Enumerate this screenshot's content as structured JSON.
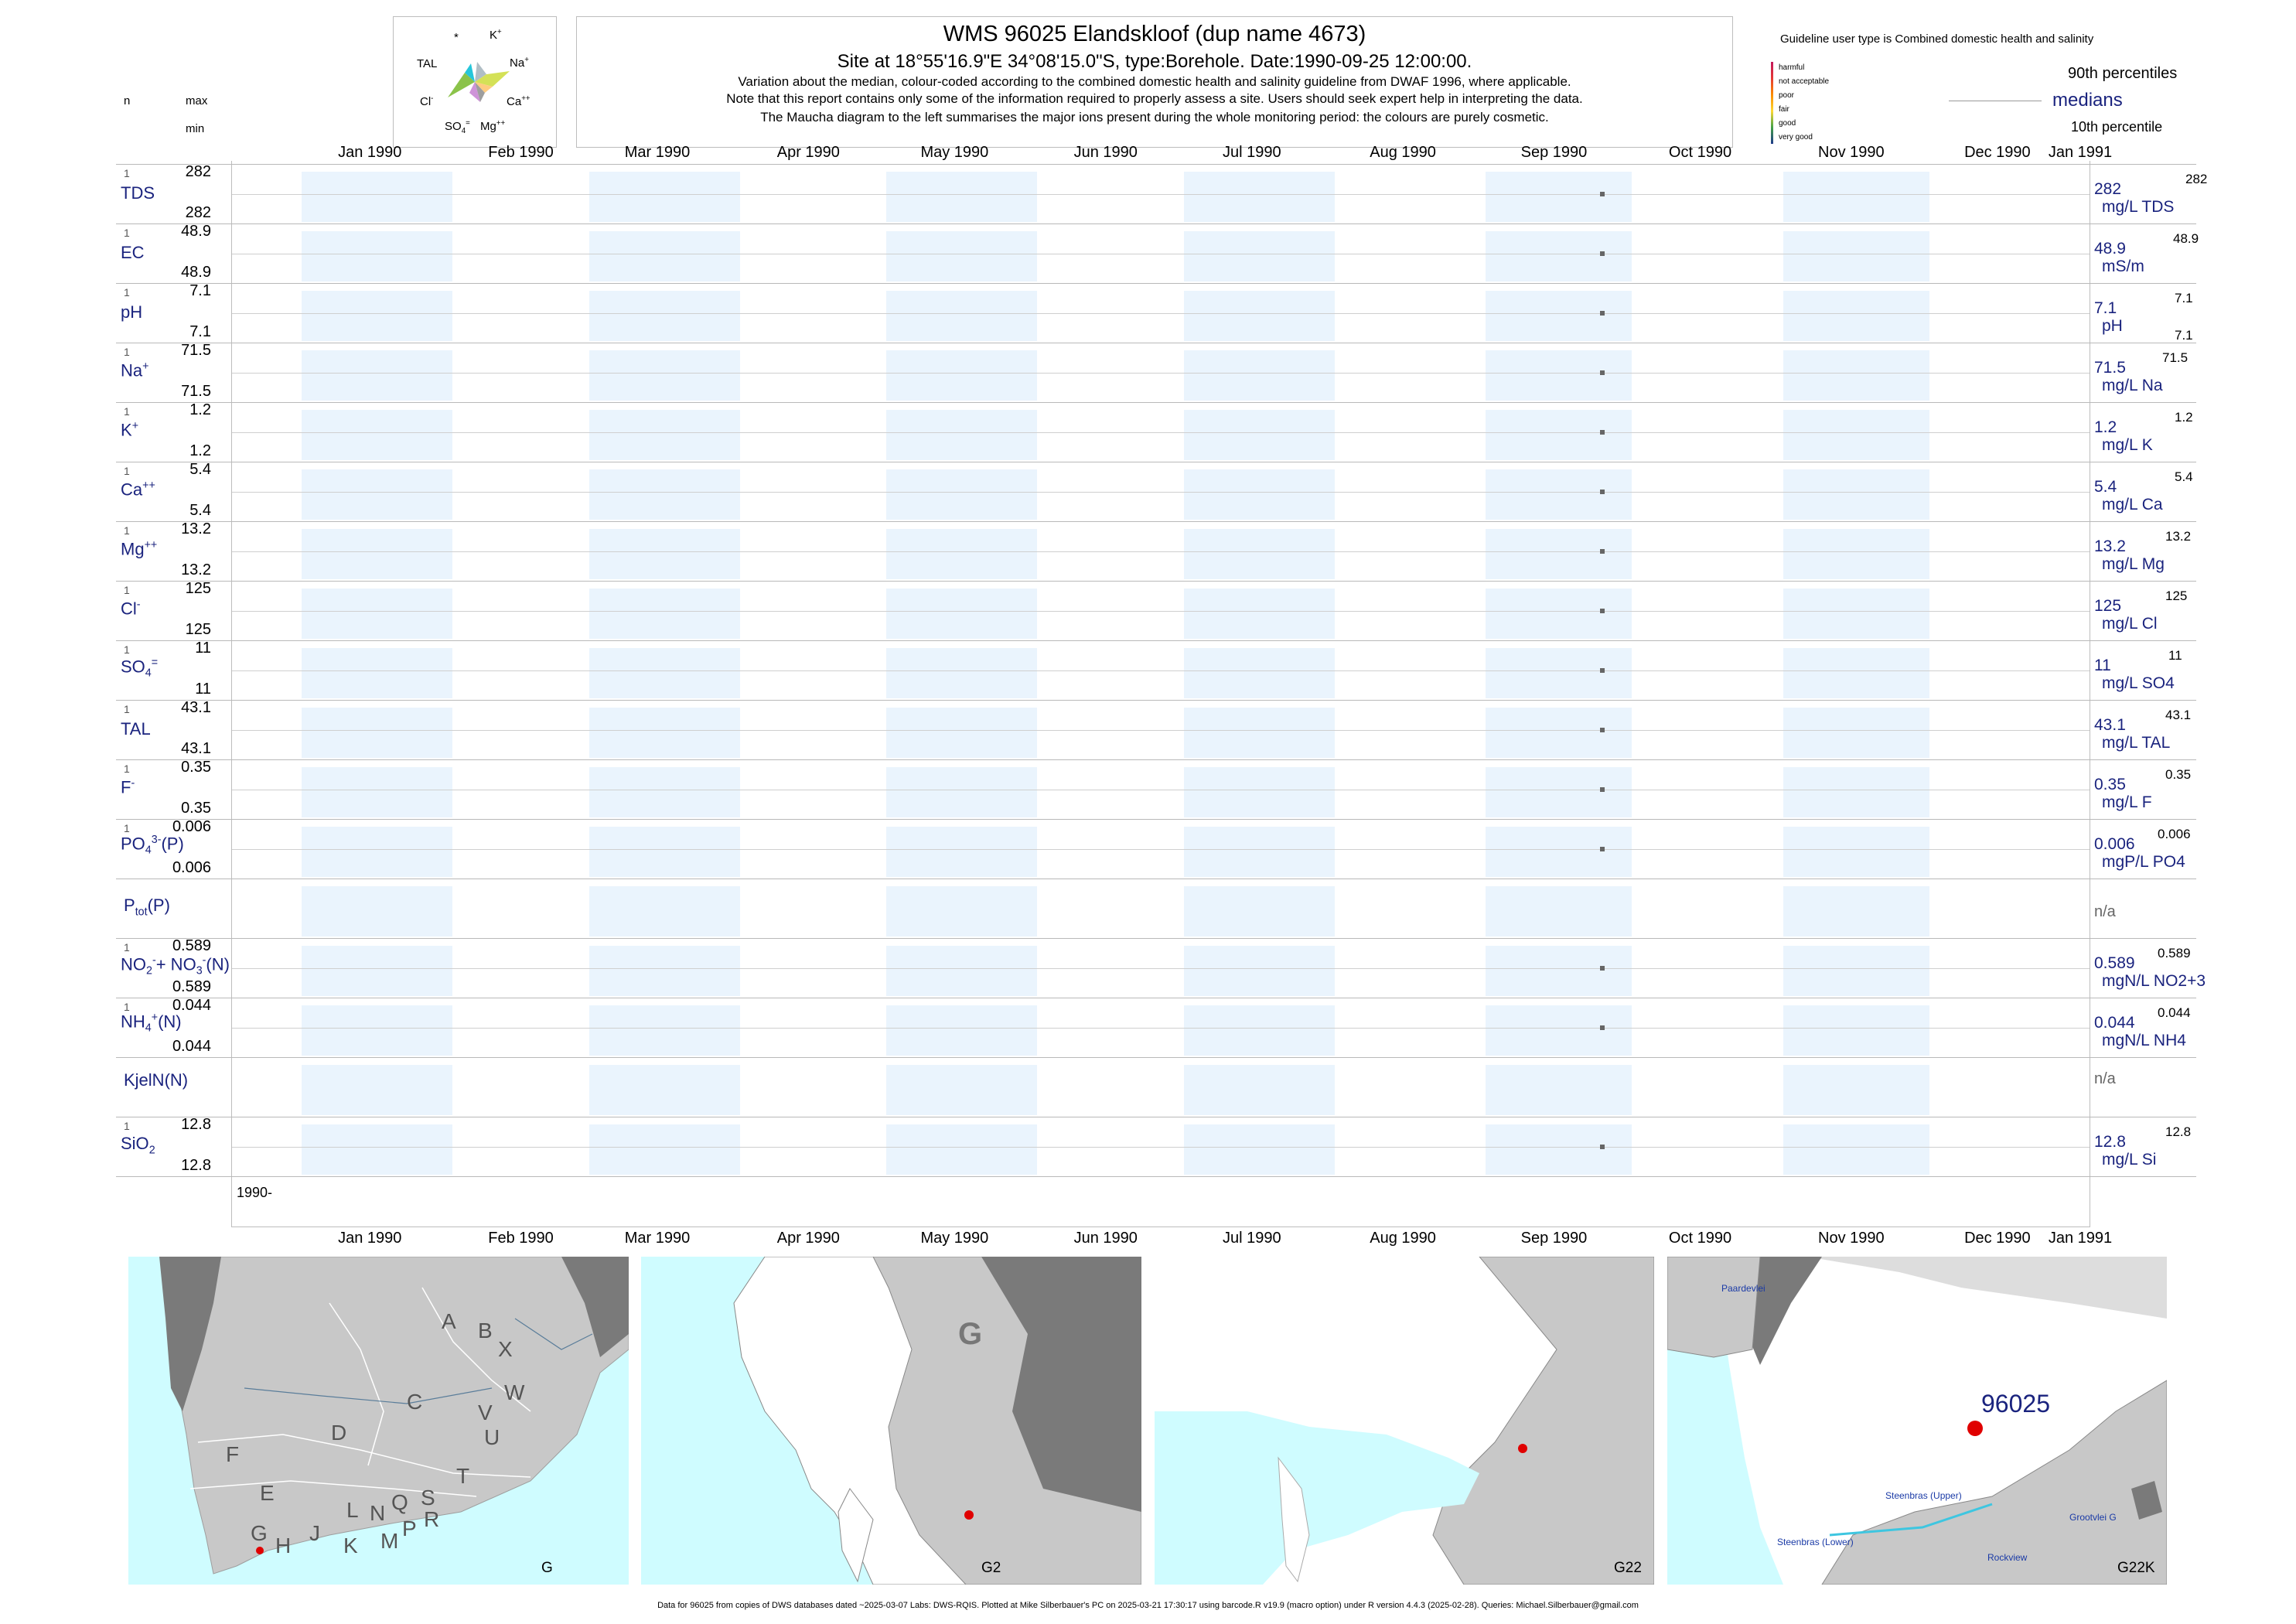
{
  "header": {
    "title": "WMS 96025  Elandskloof (dup name 4673)",
    "subtitle": "Site at 18°55'16.9\"E 34°08'15.0\"S, type:Borehole. Date:1990-09-25 12:00:00.",
    "note1": "Variation about the median,  colour-coded according to the combined domestic health and salinity guideline from DWAF 1996, where applicable.",
    "note2": "Note that this report contains only some of the information required to properly assess a site. Users should seek expert help in interpreting the data.",
    "note3": "The Maucha diagram to the left summarises the major ions present during the whole monitoring period: the colours are purely cosmetic."
  },
  "left_header": {
    "n": "n",
    "max": "max",
    "min": "min"
  },
  "maucha": {
    "star": "*",
    "k": "K",
    "tal": "TAL",
    "na": "Na",
    "cl": "Cl",
    "ca": "Ca",
    "so4": "SO",
    "mg": "Mg"
  },
  "legend": {
    "guideline": "Guideline user type is Combined domestic health and salinity",
    "classes": [
      "harmful",
      "not acceptable",
      "poor",
      "fair",
      "good",
      "very good"
    ],
    "class_colors": [
      "#c2185b",
      "#e53935",
      "#fb8c00",
      "#fdd835",
      "#43a047",
      "#1e3a8a"
    ],
    "p90": "90th percentiles",
    "medians": "medians",
    "p10": "10th percentile"
  },
  "chart_data": {
    "type": "scatter",
    "x_range": [
      "1990-01-01",
      "1991-01-01"
    ],
    "sample_date": "1990-09-25",
    "months_top": [
      "Jan 1990",
      "Feb 1990",
      "Mar 1990",
      "Apr 1990",
      "May 1990",
      "Jun 1990",
      "Jul 1990",
      "Aug 1990",
      "Sep 1990",
      "Oct 1990",
      "Nov 1990",
      "Dec 1990",
      "Jan 1991"
    ],
    "months_bottom": [
      "Jan 1990",
      "Feb 1990",
      "Mar 1990",
      "Apr 1990",
      "May 1990",
      "Jun 1990",
      "Jul 1990",
      "Aug 1990",
      "Sep 1990",
      "Oct 1990",
      "Nov 1990",
      "Dec 1990",
      "Jan 1991"
    ],
    "year_label": "1990-",
    "variables": [
      {
        "id": "tds",
        "n": "1",
        "max": "282",
        "min": "282",
        "median": "282",
        "unit": "mg/L TDS",
        "p90": "282",
        "value": 282
      },
      {
        "id": "ec",
        "n": "1",
        "max": "48.9",
        "min": "48.9",
        "median": "48.9",
        "unit": "mS/m",
        "p90": "48.9",
        "value": 48.9
      },
      {
        "id": "ph",
        "n": "1",
        "max": "7.1",
        "min": "7.1",
        "median": "7.1",
        "unit": "pH",
        "p90": "7.1",
        "p10": "7.1",
        "value": 7.1
      },
      {
        "id": "na",
        "n": "1",
        "max": "71.5",
        "min": "71.5",
        "median": "71.5",
        "unit": "mg/L Na",
        "p90": "71.5",
        "value": 71.5
      },
      {
        "id": "k",
        "n": "1",
        "max": "1.2",
        "min": "1.2",
        "median": "1.2",
        "unit": "mg/L K",
        "p90": "1.2",
        "value": 1.2
      },
      {
        "id": "ca",
        "n": "1",
        "max": "5.4",
        "min": "5.4",
        "median": "5.4",
        "unit": "mg/L Ca",
        "p90": "5.4",
        "value": 5.4
      },
      {
        "id": "mg",
        "n": "1",
        "max": "13.2",
        "min": "13.2",
        "median": "13.2",
        "unit": "mg/L Mg",
        "p90": "13.2",
        "value": 13.2
      },
      {
        "id": "cl",
        "n": "1",
        "max": "125",
        "min": "125",
        "median": "125",
        "unit": "mg/L Cl",
        "p90": "125",
        "value": 125
      },
      {
        "id": "so4",
        "n": "1",
        "max": "11",
        "min": "11",
        "median": "11",
        "unit": "mg/L SO4",
        "p90": "11",
        "value": 11
      },
      {
        "id": "tal",
        "n": "1",
        "max": "43.1",
        "min": "43.1",
        "median": "43.1",
        "unit": "mg/L TAL",
        "p90": "43.1",
        "value": 43.1
      },
      {
        "id": "f",
        "n": "1",
        "max": "0.35",
        "min": "0.35",
        "median": "0.35",
        "unit": "mg/L F",
        "p90": "0.35",
        "value": 0.35
      },
      {
        "id": "po4",
        "n": "1",
        "max": "0.006",
        "min": "0.006",
        "median": "0.006",
        "unit": "mgP/L PO4",
        "p90": "0.006",
        "value": 0.006
      },
      {
        "id": "ptot",
        "na": "n/a"
      },
      {
        "id": "no3",
        "n": "1",
        "max": "0.589",
        "min": "0.589",
        "median": "0.589",
        "unit": "mgN/L NO2+3",
        "p90": "0.589",
        "value": 0.589
      },
      {
        "id": "nh4",
        "n": "1",
        "max": "0.044",
        "min": "0.044",
        "median": "0.044",
        "unit": "mgN/L NH4",
        "p90": "0.044",
        "value": 0.044
      },
      {
        "id": "kjel",
        "na": "n/a"
      },
      {
        "id": "sio2",
        "n": "1",
        "max": "12.8",
        "min": "12.8",
        "median": "12.8",
        "unit": "mg/L Si",
        "p90": "12.8",
        "value": 12.8
      }
    ]
  },
  "maps": {
    "m1": {
      "label": "G",
      "regions": [
        "A",
        "B",
        "X",
        "W",
        "C",
        "V",
        "U",
        "D",
        "T",
        "F",
        "E",
        "L",
        "N",
        "Q",
        "S",
        "R",
        "G",
        "H",
        "J",
        "K",
        "M",
        "P"
      ]
    },
    "m2": {
      "label": "G2",
      "region": "G"
    },
    "m3": {
      "label": "G22"
    },
    "m4": {
      "label": "G22K",
      "site": "96025",
      "places": [
        "Paardevlei",
        "Steenbras (Upper)",
        "Steenbras (Lower)",
        "Grootvlei G",
        "Rockview"
      ]
    }
  },
  "footer": "Data for 96025 from copies of DWS databases dated ~2025-03-07 Labs: DWS-RQIS. Plotted at Mike Silberbauer's PC on 2025-03-21 17:30:17 using barcode.R v19.9 (macro option) under R version 4.4.3 (2025-02-28). Queries: Michael.Silberbauer@gmail.com"
}
